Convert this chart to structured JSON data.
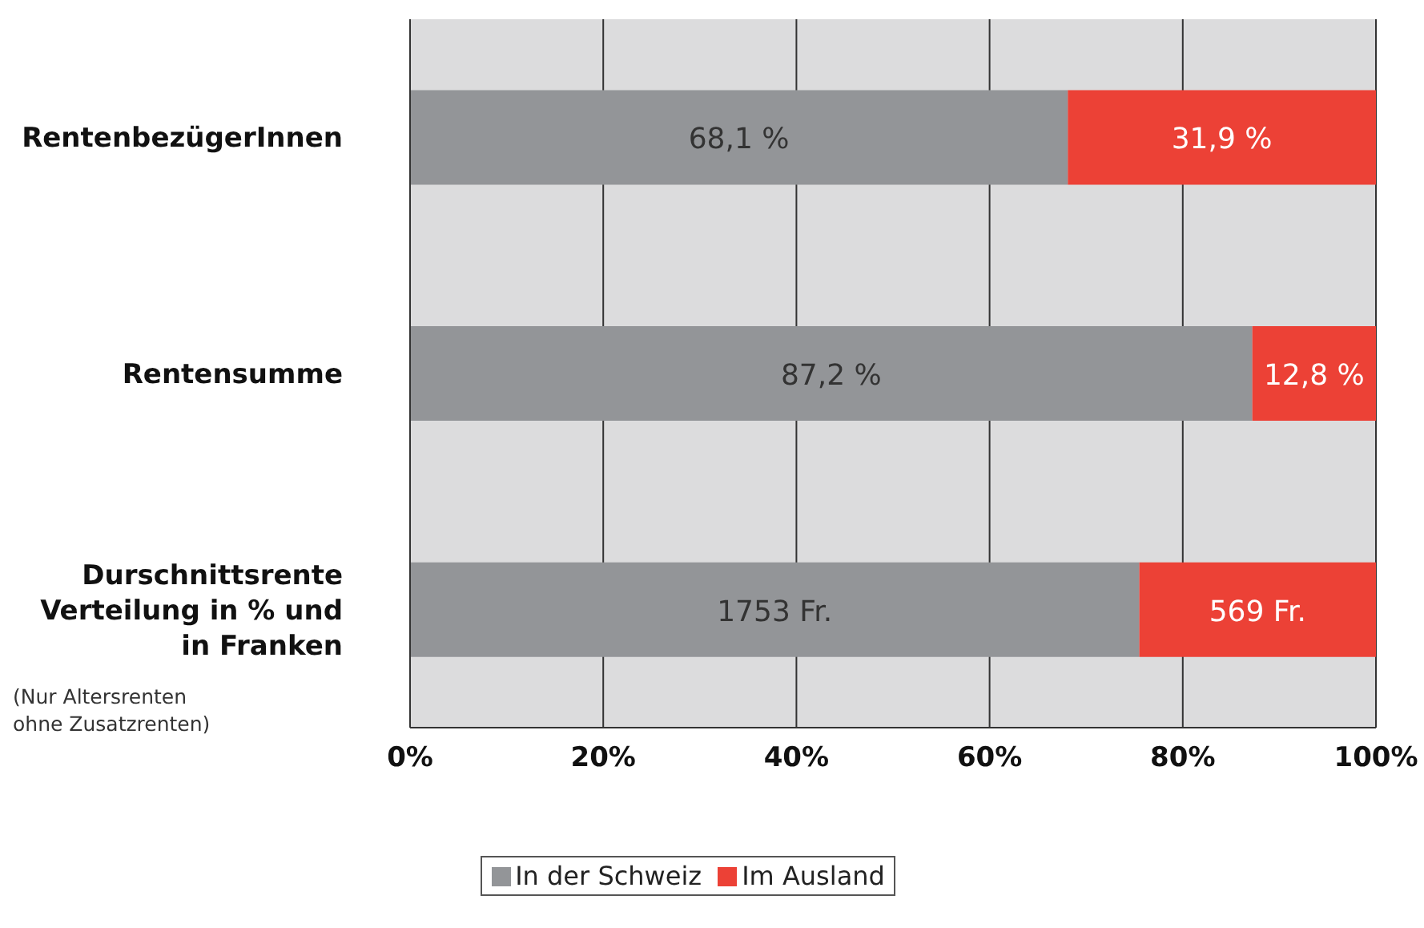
{
  "chart_data": {
    "type": "bar",
    "orientation": "horizontal",
    "stacked": true,
    "categories": [
      "RentenbezügerInnen",
      "Rentensumme",
      "Durschnittsrente\nVerteilung in % und\nin Franken"
    ],
    "series": [
      {
        "name": "In der Schweiz",
        "color": "#939598",
        "values": [
          68.1,
          87.2,
          75.5
        ],
        "value_labels": [
          "68,1 %",
          "87,2 %",
          null
        ]
      },
      {
        "name": "Im Ausland",
        "color": "#ec4136",
        "values": [
          31.9,
          12.8,
          24.5
        ],
        "value_labels": [
          "31,9 %",
          "12,8 %",
          null
        ]
      }
    ],
    "xlim": [
      0,
      100
    ],
    "xticks": [
      {
        "value": 0,
        "label": "0%"
      },
      {
        "value": 20,
        "label": "20%"
      },
      {
        "value": 40,
        "label": "40%"
      },
      {
        "value": 60,
        "label": "60%"
      },
      {
        "value": 80,
        "label": "80%"
      },
      {
        "value": 100,
        "label": "100%"
      }
    ],
    "grid": "x",
    "legend": "bottom",
    "annotations": [
      "(Nur Altersrenten\nohne Zusatzrenten)",
      "1753 Fr.",
      "569 Fr."
    ]
  }
}
